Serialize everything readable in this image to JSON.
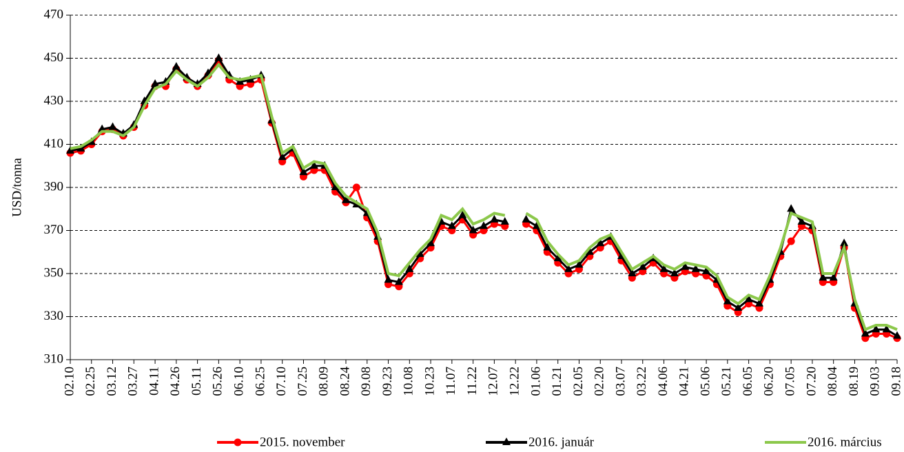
{
  "chart_data": {
    "type": "line",
    "y_label": "USD/tonna",
    "categories": [
      "02.10",
      null,
      "02.25",
      null,
      "03.12",
      null,
      "03.27",
      null,
      "04.11",
      null,
      "04.26",
      null,
      "05.11",
      null,
      "05.26",
      null,
      "06.10",
      null,
      "06.25",
      null,
      "07.10",
      null,
      "07.25",
      null,
      "08.09",
      null,
      "08.24",
      null,
      "09.08",
      null,
      "09.23",
      null,
      "10.08",
      null,
      "10.23",
      null,
      "11.07",
      null,
      "11.22",
      null,
      "12.07",
      null,
      "12.22",
      null,
      "01.06",
      null,
      "01.21",
      null,
      "02.05",
      null,
      "02.20",
      null,
      "03.07",
      null,
      "03.22",
      null,
      "04.06",
      null,
      "04.21",
      null,
      "05.06",
      null,
      "05.21",
      null,
      "06.05",
      null,
      "06.20",
      null,
      "07.05",
      null,
      "07.20",
      null,
      "08.04",
      null,
      "08.19",
      null,
      "09.03",
      null,
      "09.18"
    ],
    "series": [
      {
        "name": "2015. november",
        "color": "#ff0000",
        "marker": "circle",
        "values": [
          406,
          407,
          410,
          416,
          417,
          414,
          418,
          428,
          437,
          437,
          445,
          440,
          437,
          442,
          449,
          440,
          437,
          438,
          440,
          420,
          402,
          406,
          395,
          398,
          398,
          388,
          383,
          390,
          376,
          365,
          345,
          344,
          350,
          357,
          362,
          372,
          370,
          375,
          368,
          370,
          373,
          372,
          null,
          373,
          370,
          360,
          355,
          350,
          352,
          358,
          362,
          365,
          356,
          348,
          351,
          355,
          350,
          348,
          351,
          350,
          349,
          345,
          335,
          332,
          336,
          334,
          345,
          358,
          365,
          372,
          370,
          346,
          346,
          362,
          334,
          320,
          322,
          322,
          320
        ]
      },
      {
        "name": "2016. január",
        "color": "#000000",
        "marker": "triangle",
        "values": [
          407,
          408,
          411,
          417,
          418,
          415,
          419,
          430,
          438,
          439,
          446,
          441,
          438,
          443,
          450,
          442,
          439,
          440,
          442,
          421,
          404,
          408,
          397,
          400,
          400,
          390,
          384,
          382,
          378,
          367,
          347,
          346,
          352,
          359,
          364,
          374,
          372,
          377,
          370,
          372,
          375,
          374,
          null,
          375,
          372,
          362,
          357,
          352,
          354,
          360,
          364,
          367,
          358,
          350,
          353,
          357,
          352,
          350,
          353,
          352,
          351,
          347,
          337,
          334,
          338,
          336,
          347,
          360,
          380,
          374,
          372,
          348,
          348,
          364,
          336,
          322,
          324,
          324,
          321
        ]
      },
      {
        "name": "2016. március",
        "color": "#8cc84b",
        "marker": "none",
        "values": [
          408,
          409,
          412,
          416,
          416,
          414,
          418,
          428,
          436,
          438,
          444,
          440,
          437,
          441,
          447,
          441,
          440,
          441,
          442,
          423,
          406,
          409,
          399,
          402,
          401,
          392,
          386,
          383,
          380,
          369,
          350,
          349,
          355,
          361,
          366,
          377,
          375,
          380,
          373,
          375,
          378,
          377,
          null,
          378,
          375,
          365,
          359,
          354,
          356,
          362,
          366,
          368,
          360,
          352,
          355,
          358,
          354,
          352,
          355,
          354,
          353,
          349,
          339,
          336,
          340,
          338,
          349,
          362,
          378,
          376,
          374,
          350,
          350,
          362,
          338,
          324,
          326,
          326,
          324
        ]
      }
    ],
    "ylim": [
      310,
      470
    ],
    "yticks": [
      310,
      330,
      350,
      370,
      390,
      410,
      430,
      450,
      470
    ],
    "grid": true,
    "legend": "bottom"
  }
}
